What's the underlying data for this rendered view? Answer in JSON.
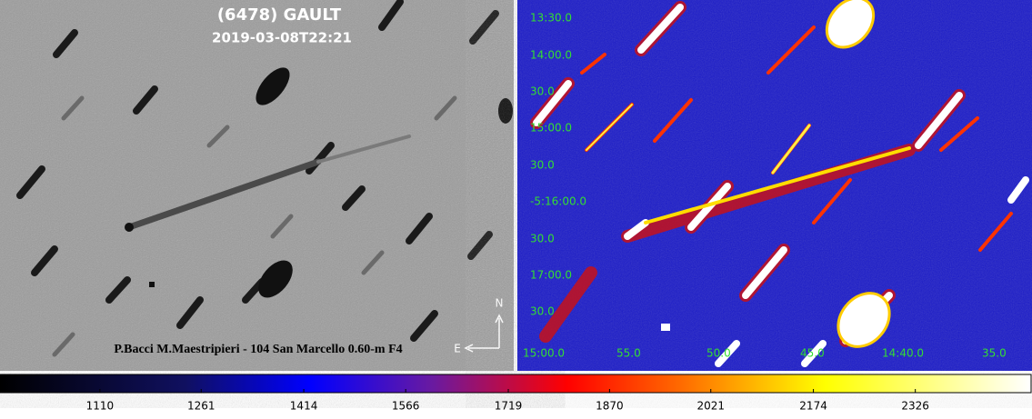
{
  "left_panel": {
    "title": "(6478) GAULT",
    "timestamp": "2019-03-08T22:21",
    "credit": "P.Bacci M.Maestripieri - 104 San Marcello 0.60-m  F4",
    "compass": {
      "north": "N",
      "east": "E"
    }
  },
  "right_panel": {
    "dec_labels": [
      "13:30.0",
      "14:00.0",
      "30.0",
      "15:00.0",
      "30.0",
      "-5:16:00.0",
      "30.0",
      "17:00.0",
      "30.0"
    ],
    "ra_labels": [
      "15:00.0",
      "55.0",
      "50.0",
      "45.0",
      "14:40.0",
      "35.0"
    ]
  },
  "colorbar": {
    "range": [
      961,
      2500
    ],
    "ticks": [
      1110,
      1261,
      1414,
      1566,
      1719,
      1870,
      2021,
      2174,
      2326
    ]
  }
}
